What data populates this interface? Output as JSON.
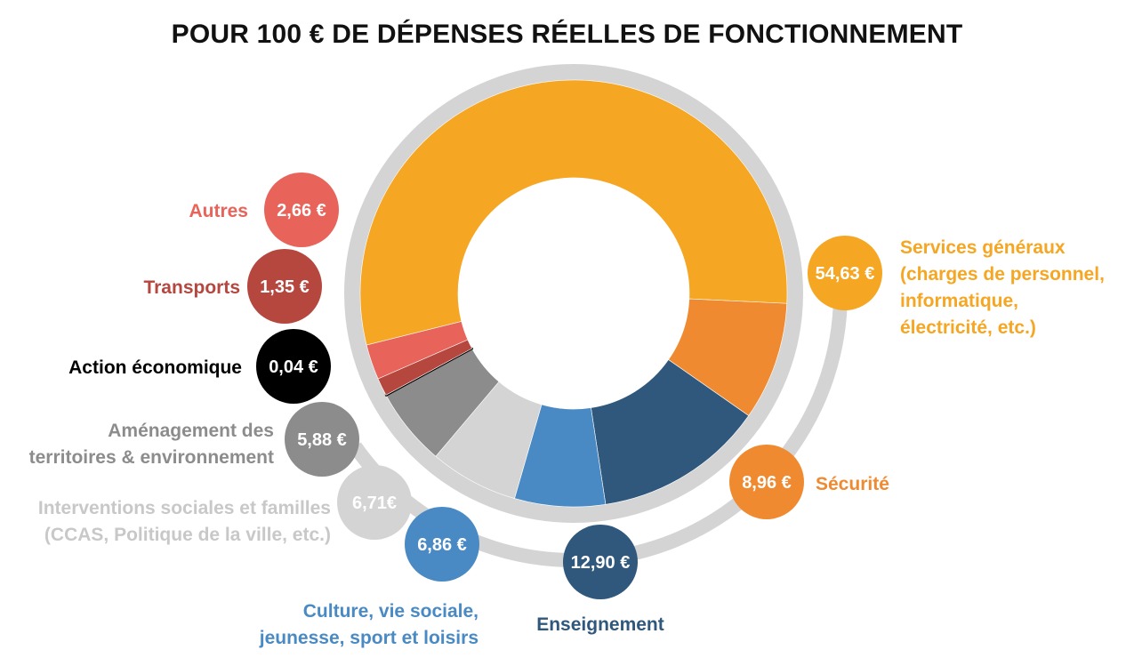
{
  "title": "POUR 100 € DE DÉPENSES RÉELLES DE FONCTIONNEMENT",
  "chart_data": {
    "type": "pie",
    "unit": "€",
    "slices": [
      {
        "key": "services-generaux",
        "value": 54.63,
        "value_label": "54,63 €",
        "label_lines": [
          "Services généraux",
          "(charges de personnel,",
          "informatique,",
          "électricité, etc.)"
        ],
        "color": "#F5A623"
      },
      {
        "key": "securite",
        "value": 8.96,
        "value_label": "8,96 €",
        "label_lines": [
          "Sécurité"
        ],
        "color": "#F08A30"
      },
      {
        "key": "enseignement",
        "value": 12.9,
        "value_label": "12,90 €",
        "label_lines": [
          "Enseignement"
        ],
        "color": "#2F587C"
      },
      {
        "key": "culture",
        "value": 6.86,
        "value_label": "6,86 €",
        "label_lines": [
          "Culture, vie sociale,",
          "jeunesse, sport et loisirs"
        ],
        "color": "#4A8AC4"
      },
      {
        "key": "interventions-sociales",
        "value": 6.71,
        "value_label": "6,71€",
        "label_lines": [
          "Interventions sociales et familles",
          "(CCAS, Politique de la ville, etc.)"
        ],
        "color": "#D4D4D4"
      },
      {
        "key": "amenagement",
        "value": 5.88,
        "value_label": "5,88 €",
        "label_lines": [
          "Aménagement des",
          "territoires & environnement"
        ],
        "color": "#8C8C8C"
      },
      {
        "key": "action-economique",
        "value": 0.04,
        "value_label": "0,04 €",
        "label_lines": [
          "Action économique"
        ],
        "color": "#000000"
      },
      {
        "key": "transports",
        "value": 1.35,
        "value_label": "1,35 €",
        "label_lines": [
          "Transports"
        ],
        "color": "#B5473F"
      },
      {
        "key": "autres",
        "value": 2.66,
        "value_label": "2,66 €",
        "label_lines": [
          "Autres"
        ],
        "color": "#E8645A"
      }
    ],
    "label_text_colors": {
      "services-generaux": "#F5A623",
      "securite": "#F08A30",
      "enseignement": "#2F587C",
      "culture": "#4A8AC4",
      "interventions-sociales": "#C8C8C8",
      "amenagement": "#8C8C8C",
      "action-economique": "#000000",
      "transports": "#B5473F",
      "autres": "#E8645A"
    },
    "ring_color": "#D4D4D4"
  }
}
